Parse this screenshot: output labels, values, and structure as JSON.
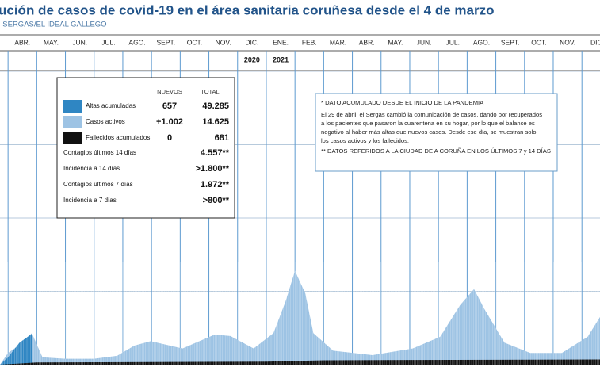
{
  "chart_data": {
    "type": "area",
    "title": "ución de casos de covid-19 en el área sanitaria coruñesa desde el 4 de marzo",
    "source": ": SERGAS/EL IDEAL GALLEGO",
    "xlim": [
      0.72,
      21.63
    ],
    "ylim": [
      0,
      4
    ],
    "yticks": [
      1,
      2,
      3,
      4
    ],
    "grid": true,
    "xticks": [
      {
        "value": 1.5,
        "label": "ABR."
      },
      {
        "value": 2.5,
        "label": "MAY."
      },
      {
        "value": 3.5,
        "label": "JUN."
      },
      {
        "value": 4.5,
        "label": "JUL."
      },
      {
        "value": 5.5,
        "label": "AGO."
      },
      {
        "value": 6.5,
        "label": "SEPT."
      },
      {
        "value": 7.5,
        "label": "OCT."
      },
      {
        "value": 8.5,
        "label": "NOV."
      },
      {
        "value": 9.5,
        "label": "DIC."
      },
      {
        "value": 10.5,
        "label": "ENE."
      },
      {
        "value": 11.5,
        "label": "FEB."
      },
      {
        "value": 12.5,
        "label": "MAR."
      },
      {
        "value": 13.5,
        "label": "ABR."
      },
      {
        "value": 14.5,
        "label": "MAY."
      },
      {
        "value": 15.5,
        "label": "JUN."
      },
      {
        "value": 16.5,
        "label": "JUL."
      },
      {
        "value": 17.5,
        "label": "AGO."
      },
      {
        "value": 18.5,
        "label": "SEPT."
      },
      {
        "value": 19.5,
        "label": "OCT."
      },
      {
        "value": 20.5,
        "label": "NOV."
      },
      {
        "value": 21.5,
        "label": "DIC"
      }
    ],
    "x_boundaries": [
      1,
      2,
      3,
      4,
      5,
      6,
      7,
      8,
      9,
      10,
      11,
      12,
      13,
      14,
      15,
      16,
      17,
      18,
      19,
      20,
      21
    ],
    "year_labels": [
      {
        "value": 9.5,
        "label": "2020"
      },
      {
        "value": 10.5,
        "label": "2021"
      }
    ],
    "series": [
      {
        "name": "Casos activos",
        "color": "#9dc3e4",
        "nuevos": "+1.002",
        "total": "14.625",
        "x": [
          0.72,
          1.0,
          1.4,
          1.83,
          2.2,
          3.0,
          4.0,
          4.8,
          5.4,
          5.97,
          7.08,
          8.2,
          8.75,
          9.56,
          10.25,
          10.67,
          11.0,
          11.36,
          11.64,
          12.33,
          13.7,
          15.1,
          16.06,
          16.75,
          17.24,
          17.6,
          18.3,
          19.2,
          20.3,
          21.2,
          21.63
        ],
        "values": [
          0,
          0.16,
          0.27,
          0.43,
          0.1,
          0.08,
          0.08,
          0.12,
          0.26,
          0.32,
          0.22,
          0.41,
          0.39,
          0.22,
          0.43,
          0.86,
          1.28,
          0.97,
          0.43,
          0.19,
          0.13,
          0.22,
          0.38,
          0.81,
          1.03,
          0.76,
          0.3,
          0.16,
          0.16,
          0.38,
          0.65
        ]
      },
      {
        "name": "Altas acumuladas",
        "color": "#2f86c3",
        "nuevos": "657",
        "total": "49.285",
        "x": [
          0.72,
          1.0,
          1.4,
          1.83
        ],
        "values": [
          0,
          0.1,
          0.3,
          0.42
        ]
      },
      {
        "name": "Fallecidos acumulados",
        "color": "#111111",
        "nuevos": "0",
        "total": "681",
        "x": [
          0.72,
          2.0,
          10.0,
          12.0,
          21.63
        ],
        "values": [
          0,
          0.03,
          0.04,
          0.06,
          0.07
        ]
      }
    ],
    "summary_headers": [
      "NUEVOS",
      "TOTAL"
    ],
    "summary_rows": [
      {
        "label": "Contagios últimos 14 días",
        "value": "4.557**"
      },
      {
        "label": "Incidencia a 14 días",
        "value": ">1.800**"
      },
      {
        "label": "Contagios últimos 7 días",
        "value": "1.972**"
      },
      {
        "label": "Incidencia a 7 días",
        "value": ">800**"
      }
    ],
    "note": [
      "* DATO ACUMULADO DESDE EL INICIO DE LA PANDEMIA",
      "El 29 de abril, el Sergas cambió la comunicación de casos, dando por recuperados",
      "a los pacientes que pasaron la cuarentena en su hogar, por lo que el balance es",
      "negativo al haber más altas que nuevos casos. Desde ese día, se muestran solo",
      "los casos activos y los fallecidos.",
      "** DATOS REFERIDOS A LA CIUDAD DE A CORUÑA EN LOS ÚLTIMOS 7 y 14 DÍAS"
    ]
  }
}
